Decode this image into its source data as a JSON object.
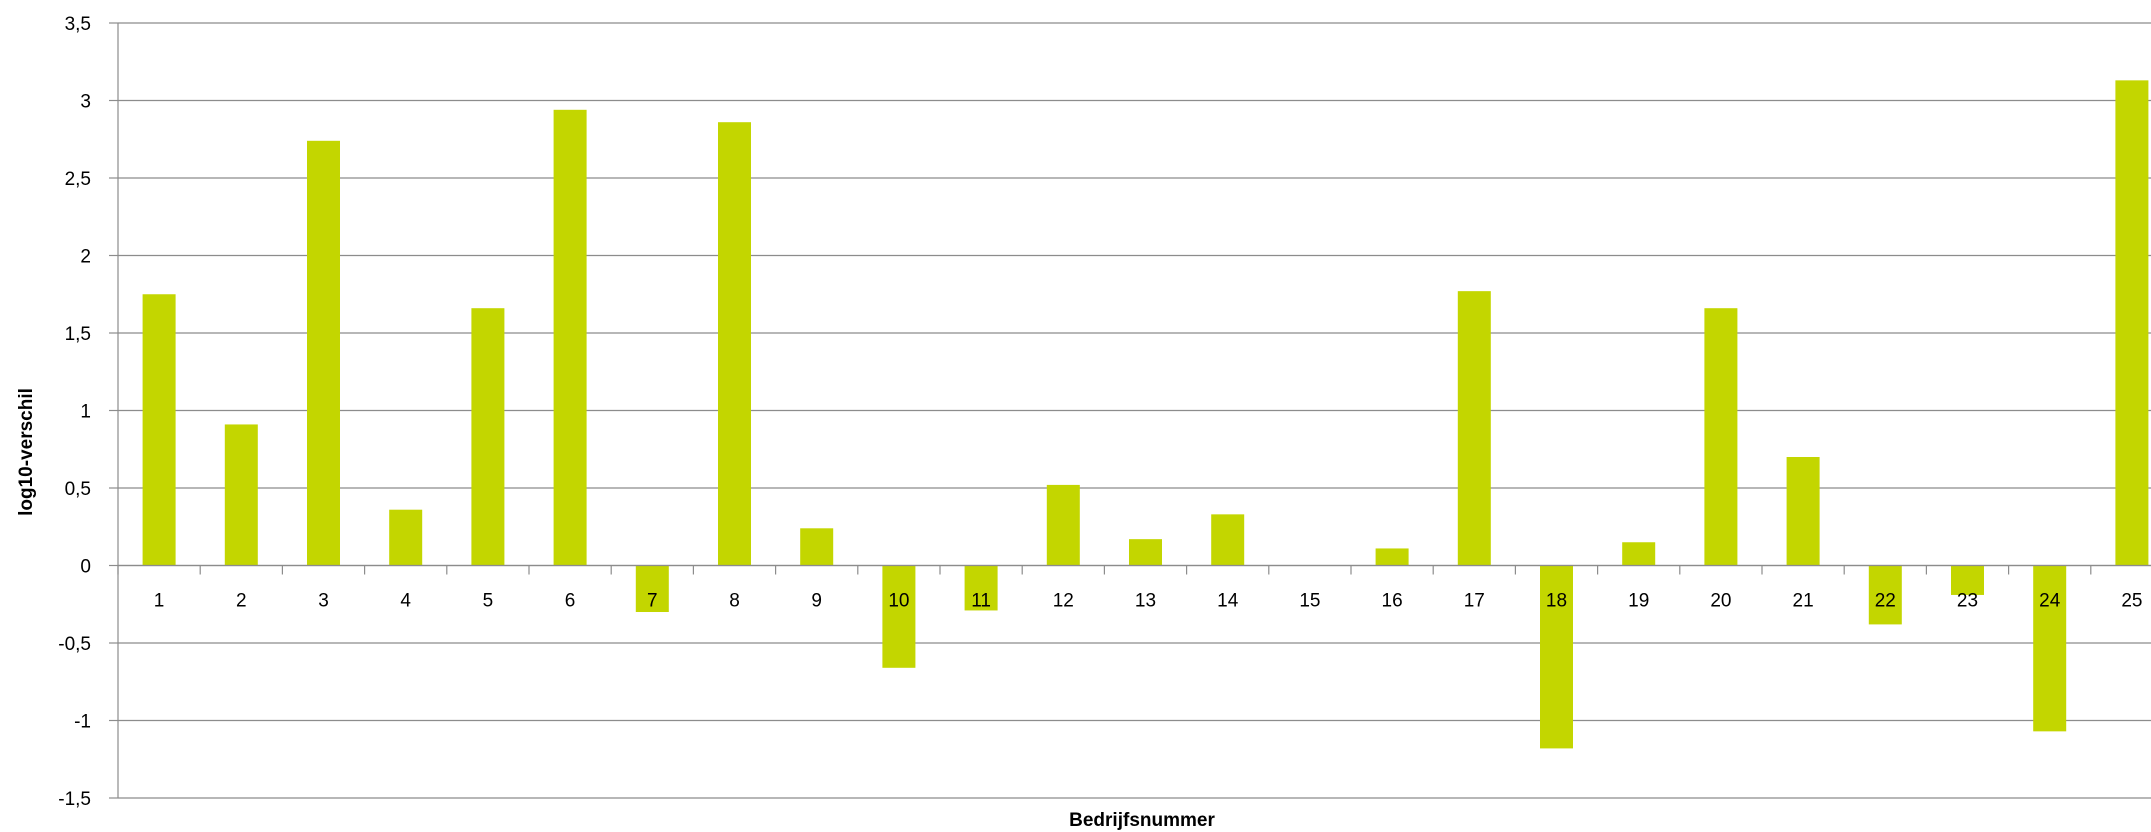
{
  "chart_data": {
    "type": "bar",
    "title": "",
    "xlabel": "Bedrijfsnummer",
    "ylabel": "log10-verschil",
    "categories": [
      "1",
      "2",
      "3",
      "4",
      "5",
      "6",
      "7",
      "8",
      "9",
      "10",
      "11",
      "12",
      "13",
      "14",
      "15",
      "16",
      "17",
      "18",
      "19",
      "20",
      "21",
      "22",
      "23",
      "24",
      "25"
    ],
    "values": [
      1.75,
      0.91,
      2.74,
      0.36,
      1.66,
      2.94,
      -0.3,
      2.86,
      0.24,
      -0.66,
      -0.29,
      0.52,
      0.17,
      0.33,
      0.0,
      0.11,
      1.77,
      -1.18,
      0.15,
      1.66,
      0.7,
      -0.38,
      -0.19,
      -1.07,
      3.13
    ],
    "ylim": [
      -1.5,
      3.5
    ],
    "yticks": [
      "-1,5",
      "-1",
      "-0,5",
      "0",
      "0,5",
      "1",
      "1,5",
      "2",
      "2,5",
      "3",
      "3,5"
    ],
    "ytick_values": [
      -1.5,
      -1,
      -0.5,
      0,
      0.5,
      1,
      1.5,
      2,
      2.5,
      3,
      3.5
    ],
    "grid": true,
    "legend": "none",
    "colors": {
      "bar": "#c3d600",
      "grid": "#8c8c8c",
      "axis": "#8c8c8c"
    }
  }
}
